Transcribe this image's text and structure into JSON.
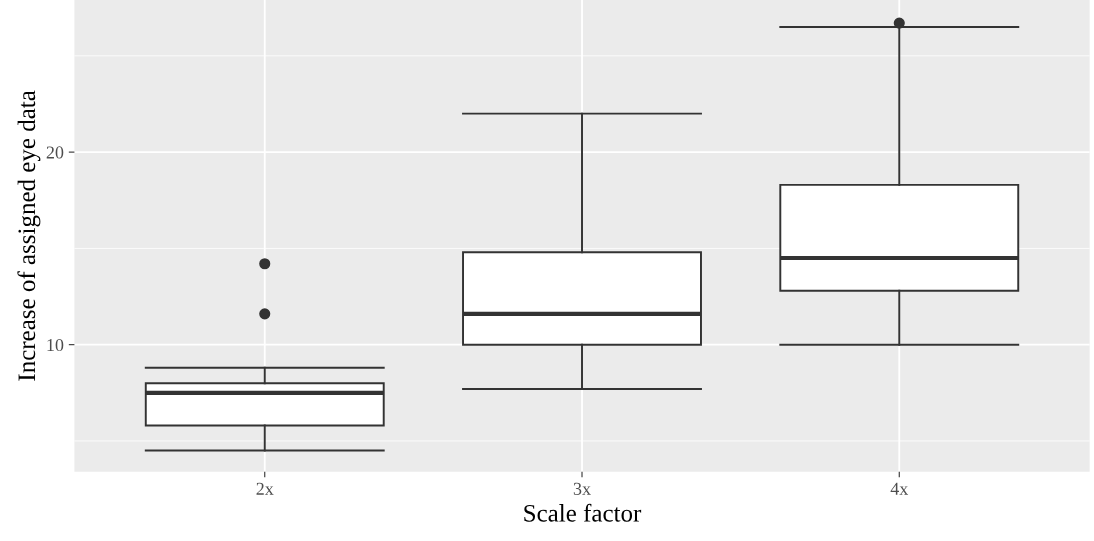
{
  "chart_data": {
    "type": "box",
    "xlabel": "Scale factor",
    "ylabel": "Increase of assigned eye data",
    "categories": [
      "2x",
      "3x",
      "4x"
    ],
    "boxes": [
      {
        "low": 4.5,
        "q1": 5.8,
        "median": 7.5,
        "q3": 8.0,
        "high": 8.8,
        "outliers": [
          14.2,
          11.6
        ]
      },
      {
        "low": 7.7,
        "q1": 10.0,
        "median": 11.6,
        "q3": 14.8,
        "high": 22.0
      },
      {
        "low": 10.0,
        "q1": 12.8,
        "median": 14.5,
        "q3": 18.3,
        "high": 26.5,
        "outliers": [
          26.7
        ]
      }
    ],
    "color": "#ffffff",
    "ylim": [
      3.4,
      27.9
    ],
    "yticks": [
      10,
      20
    ],
    "grid": true
  }
}
